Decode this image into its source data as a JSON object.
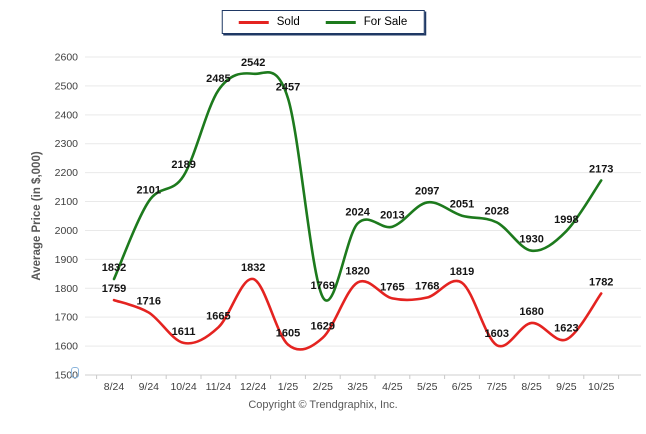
{
  "legend": {
    "items": [
      {
        "label": "Sold",
        "color": "#e42320"
      },
      {
        "label": "For Sale",
        "color": "#1d7a1d"
      }
    ]
  },
  "footer": "Copyright © Trendgraphix, Inc.",
  "chart_data": {
    "type": "line",
    "title": "",
    "xlabel": "",
    "ylabel": "Average Price (in $,000)",
    "ylim": [
      1500,
      2600
    ],
    "ytick_step": 100,
    "grid": "horizontal",
    "legend_position": "top-center",
    "categories": [
      "8/24",
      "9/24",
      "10/24",
      "11/24",
      "12/24",
      "1/25",
      "2/25",
      "3/25",
      "4/25",
      "5/25",
      "6/25",
      "7/25",
      "8/25",
      "9/25",
      "10/25"
    ],
    "series": [
      {
        "name": "Sold",
        "color": "#e42320",
        "values": [
          1759,
          1716,
          1611,
          1665,
          1832,
          1605,
          1629,
          1820,
          1765,
          1768,
          1819,
          1603,
          1680,
          1623,
          1782
        ]
      },
      {
        "name": "For Sale",
        "color": "#1d7a1d",
        "values": [
          1832,
          2101,
          2189,
          2485,
          2542,
          2457,
          1769,
          2024,
          2013,
          2097,
          2051,
          2028,
          1930,
          1998,
          2173
        ]
      }
    ]
  }
}
